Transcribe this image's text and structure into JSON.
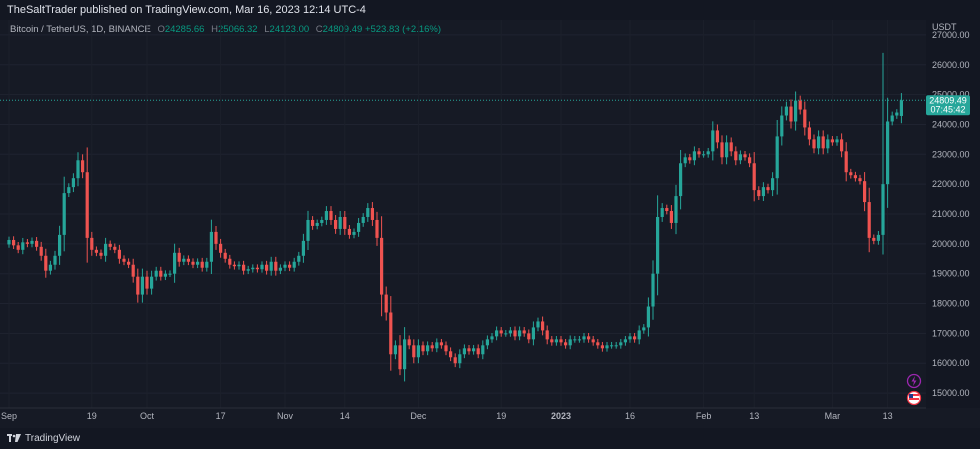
{
  "header": {
    "published": "TheSaltTrader published on TradingView.com, Mar 16, 2023 12:14 UTC-4"
  },
  "legend": {
    "symbol": "Bitcoin / TetherUS, 1D, BINANCE",
    "o_label": "O",
    "o_value": "24285.66",
    "h_label": "H",
    "h_value": "25066.32",
    "l_label": "L",
    "l_value": "24123.00",
    "c_label": "C",
    "c_value": "24809.49",
    "change": "+523.83 (+2.16%)"
  },
  "price_axis": {
    "currency": "USDT"
  },
  "last_price": {
    "value": "24809.49",
    "countdown": "07:45:42"
  },
  "footer": {
    "brand": "TradingView"
  },
  "colors": {
    "up": "#26a69a",
    "down": "#ef5350",
    "background": "#161a25",
    "axis_text": "#b2b5be"
  },
  "icons": [
    "lightning-icon",
    "flag-icon",
    "tradingview-logo-icon"
  ],
  "chart_data": {
    "type": "candlestick",
    "interval": "1D",
    "ylabel": "USDT",
    "ylim": [
      14500,
      27500
    ],
    "y_ticks": [
      {
        "value": 27000,
        "label": "27000.00"
      },
      {
        "value": 26000,
        "label": "26000.00"
      },
      {
        "value": 25000,
        "label": "25000.00"
      },
      {
        "value": 24000,
        "label": "24000.00"
      },
      {
        "value": 23000,
        "label": "23000.00"
      },
      {
        "value": 22000,
        "label": "22000.00"
      },
      {
        "value": 21000,
        "label": "21000.00"
      },
      {
        "value": 20000,
        "label": "20000.00"
      },
      {
        "value": 19000,
        "label": "19000.00"
      },
      {
        "value": 18000,
        "label": "18000.00"
      },
      {
        "value": 17000,
        "label": "17000.00"
      },
      {
        "value": 16000,
        "label": "16000.00"
      },
      {
        "value": 15000,
        "label": "15000.00"
      }
    ],
    "x_ticks": [
      {
        "index": 0,
        "label": "Sep",
        "bold": false
      },
      {
        "index": 18,
        "label": "19",
        "bold": false
      },
      {
        "index": 30,
        "label": "Oct",
        "bold": false
      },
      {
        "index": 46,
        "label": "17",
        "bold": false
      },
      {
        "index": 60,
        "label": "Nov",
        "bold": false
      },
      {
        "index": 73,
        "label": "14",
        "bold": false
      },
      {
        "index": 89,
        "label": "Dec",
        "bold": false
      },
      {
        "index": 107,
        "label": "19",
        "bold": false
      },
      {
        "index": 120,
        "label": "2023",
        "bold": true
      },
      {
        "index": 135,
        "label": "16",
        "bold": false
      },
      {
        "index": 151,
        "label": "Feb",
        "bold": false
      },
      {
        "index": 162,
        "label": "13",
        "bold": false
      },
      {
        "index": 179,
        "label": "Mar",
        "bold": false
      },
      {
        "index": 191,
        "label": "13",
        "bold": false
      }
    ],
    "close": [
      20130,
      19950,
      19800,
      20050,
      20000,
      20100,
      19900,
      19600,
      19100,
      19300,
      19600,
      20300,
      21700,
      21900,
      22200,
      22800,
      22400,
      20200,
      19800,
      19700,
      19600,
      20000,
      19900,
      19800,
      19500,
      19400,
      19300,
      18900,
      18300,
      18900,
      18500,
      18900,
      19100,
      18900,
      19000,
      19000,
      19700,
      19400,
      19500,
      19400,
      19300,
      19400,
      19200,
      19400,
      20400,
      20000,
      19700,
      19500,
      19300,
      19250,
      19300,
      19100,
      19150,
      19200,
      19150,
      19300,
      19100,
      19400,
      19100,
      19200,
      19300,
      19200,
      19400,
      19600,
      20100,
      20800,
      20600,
      20700,
      20800,
      21100,
      20800,
      20500,
      20900,
      20500,
      20300,
      20400,
      20700,
      20900,
      21200,
      20800,
      20200,
      18300,
      17700,
      16300,
      16600,
      15800,
      16800,
      16600,
      16200,
      16600,
      16400,
      16600,
      16500,
      16700,
      16600,
      16400,
      16200,
      16000,
      16300,
      16500,
      16400,
      16500,
      16300,
      16600,
      16800,
      16900,
      17100,
      17000,
      17000,
      17100,
      16900,
      17100,
      17000,
      16800,
      17200,
      17400,
      17100,
      16800,
      16700,
      16800,
      16700,
      16600,
      16800,
      16800,
      16800,
      16900,
      16800,
      16700,
      16600,
      16500,
      16600,
      16600,
      16600,
      16700,
      16800,
      16900,
      16800,
      17100,
      17200,
      17900,
      19000,
      20900,
      21200,
      21100,
      20700,
      21600,
      22700,
      22900,
      22800,
      23100,
      23000,
      23000,
      23100,
      23800,
      23400,
      22900,
      23400,
      23100,
      22800,
      23000,
      22900,
      22700,
      21800,
      21600,
      21900,
      21800,
      22200,
      23600,
      24300,
      24600,
      24100,
      24800,
      24500,
      23900,
      23500,
      23200,
      23600,
      23200,
      23500,
      23400,
      23500,
      23100,
      22400,
      22300,
      22200,
      22100,
      21400,
      20200,
      20100,
      20300,
      22000,
      24100,
      24300,
      24400,
      24809
    ],
    "open": [
      19980,
      20130,
      19950,
      19800,
      20050,
      20000,
      20100,
      19900,
      19600,
      19100,
      19300,
      19600,
      20300,
      21700,
      21900,
      22200,
      22800,
      22400,
      20200,
      19800,
      19700,
      19600,
      20000,
      19900,
      19800,
      19500,
      19400,
      19300,
      18900,
      18300,
      18900,
      18500,
      18900,
      19100,
      18900,
      19000,
      19000,
      19700,
      19400,
      19500,
      19400,
      19300,
      19400,
      19200,
      19400,
      20400,
      20000,
      19700,
      19500,
      19300,
      19250,
      19300,
      19100,
      19150,
      19200,
      19150,
      19300,
      19100,
      19400,
      19100,
      19200,
      19300,
      19200,
      19400,
      19600,
      20100,
      20800,
      20600,
      20700,
      20800,
      21100,
      20800,
      20500,
      20900,
      20500,
      20300,
      20400,
      20700,
      20900,
      21200,
      20800,
      20200,
      18300,
      17700,
      16300,
      16600,
      15800,
      16800,
      16600,
      16200,
      16600,
      16400,
      16600,
      16500,
      16700,
      16600,
      16400,
      16200,
      16000,
      16300,
      16500,
      16400,
      16500,
      16300,
      16600,
      16800,
      16900,
      17100,
      17000,
      17000,
      17100,
      16900,
      17100,
      17000,
      16800,
      17200,
      17400,
      17100,
      16800,
      16700,
      16800,
      16700,
      16600,
      16800,
      16800,
      16800,
      16900,
      16800,
      16700,
      16600,
      16500,
      16600,
      16600,
      16600,
      16700,
      16800,
      16900,
      16800,
      17100,
      17200,
      17900,
      19000,
      20900,
      21200,
      21100,
      20700,
      21600,
      22700,
      22900,
      22800,
      23100,
      23000,
      23000,
      23100,
      23800,
      23400,
      22900,
      23400,
      23100,
      22800,
      23000,
      22900,
      22700,
      21800,
      21600,
      21900,
      21800,
      22200,
      23600,
      24300,
      24600,
      24100,
      24800,
      24500,
      23900,
      23500,
      23200,
      23600,
      23200,
      23500,
      23400,
      23500,
      23100,
      22400,
      22300,
      22200,
      22100,
      21400,
      20200,
      20100,
      20300,
      22000,
      24100,
      24300,
      24285
    ],
    "high_max": 26400,
    "low_min": 15600,
    "last": 24809.49
  }
}
